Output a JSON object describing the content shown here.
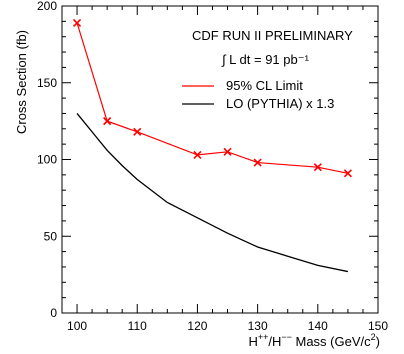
{
  "chart_data": {
    "type": "line",
    "title": "",
    "xlabel_parts": [
      "H",
      "++",
      "/H",
      "−−",
      " Mass (GeV/c",
      "2",
      ")"
    ],
    "ylabel": "Cross Section (fb)",
    "xlim": [
      97.5,
      150
    ],
    "ylim": [
      0,
      200
    ],
    "x_ticks": [
      100,
      110,
      120,
      130,
      140,
      150
    ],
    "x_tick_labels": [
      "100",
      "110",
      "120",
      "130",
      "140",
      "150"
    ],
    "y_ticks": [
      0,
      50,
      100,
      150,
      200
    ],
    "y_tick_labels": [
      "0",
      "50",
      "100",
      "150",
      "200"
    ],
    "annotations": [
      "CDF RUN II PRELIMINARY",
      "∫ L dt = 91 pb⁻¹"
    ],
    "legend_position": "top-right",
    "series": [
      {
        "name": "95% CL Limit",
        "color": "#ff0000",
        "marker": "x",
        "x": [
          100,
          105,
          110,
          120,
          125,
          130,
          140,
          145
        ],
        "y": [
          189,
          125,
          118,
          103,
          105,
          98,
          95,
          91
        ]
      },
      {
        "name": "LO (PYTHIA) x 1.3",
        "color": "#000000",
        "marker": "none",
        "x": [
          100,
          102.5,
          105,
          107.5,
          110,
          115,
          120,
          125,
          130,
          135,
          140,
          145
        ],
        "y": [
          130,
          118,
          106,
          96,
          87,
          72,
          62,
          52,
          43,
          37,
          31,
          27
        ]
      }
    ]
  }
}
